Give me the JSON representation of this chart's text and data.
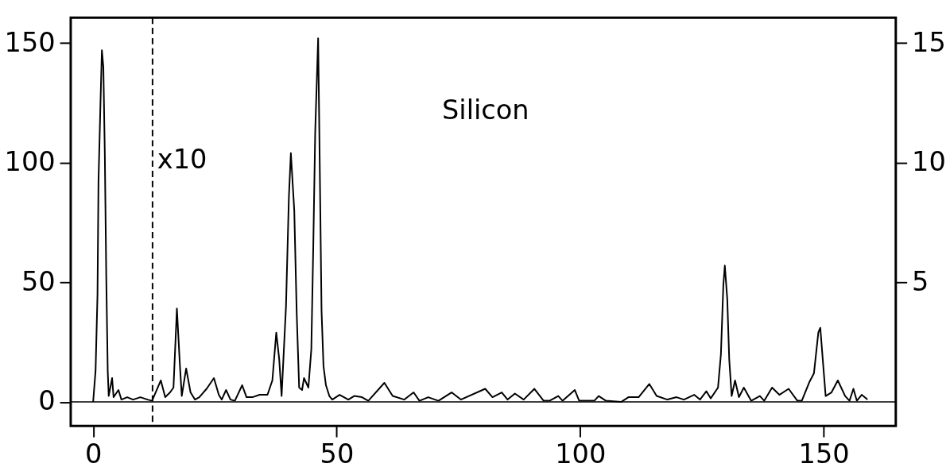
{
  "chart_data": {
    "type": "line",
    "annotations": [
      "Silicon"
    ],
    "xlim": [
      -4.6,
      164.8
    ],
    "xticks": [
      0,
      50,
      100,
      150
    ],
    "ylim": [
      -10,
      160.6
    ],
    "yticks": [
      0,
      50,
      100,
      150
    ],
    "y2lim": [
      -1.0,
      16.06
    ],
    "y2ticks": [
      5,
      10,
      15
    ],
    "grid": false,
    "marker": "none",
    "line_style": "solid",
    "ref_lines": [
      {
        "axis": "x",
        "value": 12.2,
        "label": "x10",
        "line_style": "dashed",
        "color": "#000000"
      },
      {
        "axis": "y",
        "value": 0,
        "label": null,
        "line_style": "solid",
        "color": "#000000"
      }
    ],
    "series": [
      {
        "color": "#000000",
        "x": [
          0,
          0.5,
          0.9,
          1.1,
          1.5,
          1.8,
          2.1,
          2.4,
          2.7,
          3.0,
          3.2,
          3.9,
          4.2,
          5.2,
          5.8,
          7.0,
          8.2,
          9.7,
          11.2,
          12.1,
          13.9,
          14.8,
          15.8,
          16.5,
          17.2,
          17.8,
          18.2,
          19.1,
          20.0,
          20.9,
          21.8,
          23.3,
          24.8,
          25.8,
          26.4,
          27.3,
          28.2,
          29.1,
          30.6,
          31.5,
          32.7,
          34.2,
          35.8,
          36.8,
          37.6,
          38.2,
          38.7,
          39.6,
          40.2,
          40.6,
          41.3,
          41.8,
          42.3,
          42.9,
          43.3,
          44.2,
          44.8,
          45.2,
          45.6,
          46.2,
          46.5,
          46.9,
          47.3,
          47.8,
          48.5,
          49.1,
          50.6,
          52.4,
          53.6,
          55.2,
          56.5,
          59.8,
          61.5,
          63.9,
          65.8,
          67.0,
          68.8,
          70.9,
          73.6,
          75.5,
          80.5,
          82.0,
          83.9,
          85.1,
          86.6,
          88.4,
          90.6,
          92.5,
          93.7,
          95.5,
          96.4,
          98.9,
          99.8,
          102.9,
          103.8,
          105.3,
          108.4,
          109.9,
          112.0,
          114.2,
          115.7,
          117.9,
          119.8,
          121.3,
          123.4,
          124.6,
          125.9,
          126.8,
          128.3,
          128.9,
          129.4,
          129.7,
          130.2,
          130.6,
          131.1,
          131.8,
          132.6,
          133.6,
          135.1,
          136.9,
          137.8,
          139.4,
          140.9,
          142.8,
          144.6,
          145.5,
          147.1,
          148.0,
          148.9,
          149.3,
          149.8,
          150.4,
          151.6,
          152.9,
          154.4,
          155.3,
          156.1,
          156.8,
          157.8,
          159.0
        ],
        "values": [
          0,
          13,
          45,
          92,
          124,
          147,
          140,
          104,
          52,
          13,
          2.5,
          10,
          2,
          5,
          1,
          2,
          1,
          2,
          1,
          0.5,
          9,
          2,
          4,
          6,
          39,
          16,
          2.5,
          14,
          4,
          1,
          2,
          5.5,
          10,
          3,
          1,
          5,
          1,
          0.5,
          7,
          2,
          2,
          3,
          3,
          9,
          29,
          18,
          2.5,
          40,
          86,
          104,
          80,
          37,
          6,
          5,
          10,
          6,
          22,
          65,
          113,
          152,
          104,
          38,
          15,
          7,
          2.5,
          1,
          3,
          1,
          2.5,
          2,
          0.5,
          8,
          2.5,
          1,
          4,
          0.5,
          2,
          0.5,
          4,
          1,
          5.5,
          2,
          4,
          1,
          3.5,
          1,
          5.5,
          0.5,
          0.5,
          2.5,
          0.5,
          5,
          0.5,
          0.5,
          2.5,
          0.5,
          0,
          2,
          2,
          7.5,
          2.5,
          1,
          2,
          1,
          3,
          1,
          4.5,
          1.5,
          6,
          20,
          49,
          57,
          43,
          18,
          2.5,
          9,
          2,
          6,
          0.5,
          2.5,
          0.5,
          6,
          3,
          5.5,
          0.5,
          0.5,
          8.5,
          12,
          29,
          31,
          18,
          2.5,
          4,
          9,
          2.5,
          0.5,
          5.5,
          0.5,
          3,
          1
        ]
      }
    ]
  }
}
